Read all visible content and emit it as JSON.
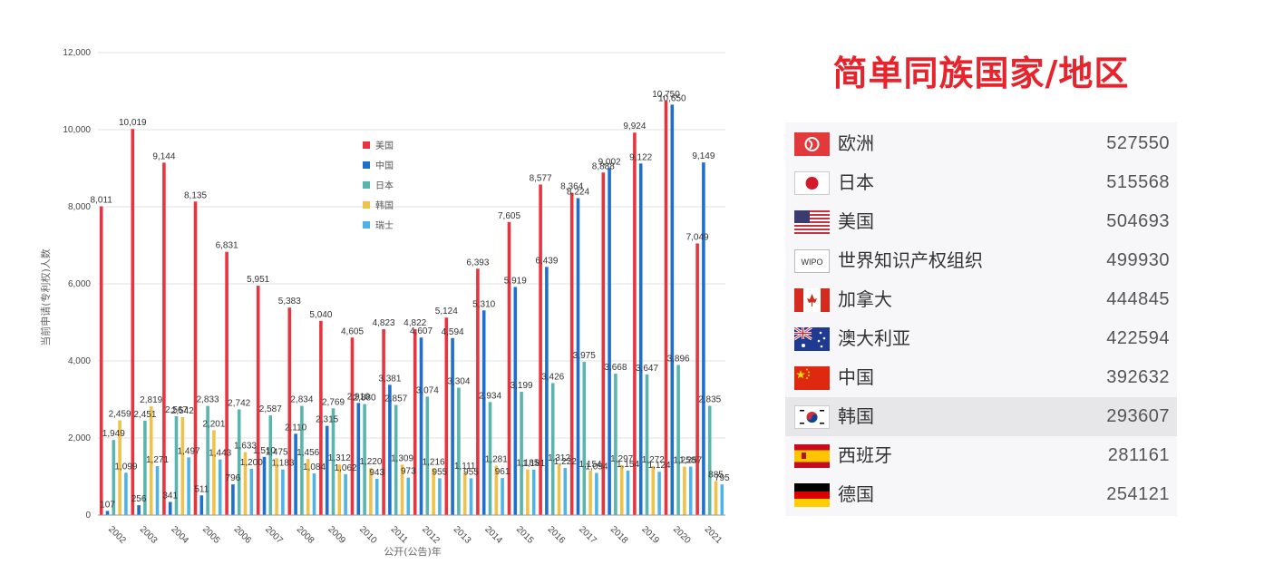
{
  "chart_data": {
    "type": "bar",
    "ylabel": "当前申请(专利权)人数",
    "xlabel": "公开(公告)年",
    "ylim": [
      0,
      12000
    ],
    "yticks": [
      "0",
      "2,000",
      "4,000",
      "6,000",
      "8,000",
      "10,000",
      "12,000"
    ],
    "grid": true,
    "legend_position": "center",
    "categories": [
      "2002",
      "2003",
      "2004",
      "2005",
      "2006",
      "2007",
      "2008",
      "2009",
      "2010",
      "2011",
      "2012",
      "2013",
      "2014",
      "2015",
      "2016",
      "2017",
      "2018",
      "2019",
      "2020",
      "2021"
    ],
    "series": [
      {
        "name": "美国",
        "color": "#e8343f",
        "values": [
          8011,
          10019,
          9144,
          8135,
          6831,
          5951,
          5383,
          5040,
          4605,
          4823,
          4822,
          5124,
          6393,
          7605,
          8577,
          8364,
          8888,
          9924,
          10750,
          7049
        ],
        "labels": [
          "8,011",
          "10,019",
          "9,144",
          "8,135",
          "6,831",
          "5,951",
          "5,383",
          "5,040",
          "4,605",
          "4,823",
          "4,822",
          "5,124",
          "6,393",
          "7,605",
          "8,577",
          "8,364",
          "8,888",
          "9,924",
          "10,750",
          "7,049"
        ]
      },
      {
        "name": "中国",
        "color": "#1f6fce",
        "values": [
          107,
          256,
          341,
          511,
          796,
          1510,
          2110,
          2315,
          2910,
          3381,
          4607,
          4594,
          5310,
          5919,
          6439,
          8224,
          9002,
          9122,
          10650,
          9149
        ],
        "labels": [
          "107",
          "256",
          "341",
          "511",
          "796",
          "1,510",
          "2,110",
          "2,315",
          "2,910",
          "3,381",
          "4,607",
          "4,594",
          "5,310",
          "5,919",
          "6,439",
          "8,224",
          "9,002",
          "9,122",
          "10,650",
          "9,149"
        ]
      },
      {
        "name": "日本",
        "color": "#5ab5ae",
        "values": [
          1949,
          2451,
          2567,
          2833,
          2742,
          2587,
          2834,
          2769,
          2880,
          2857,
          3074,
          3304,
          2934,
          3199,
          3426,
          3975,
          3668,
          3647,
          3896,
          2835
        ],
        "labels": [
          "1,949",
          "2,451",
          "2,567",
          "2,833",
          "2,742",
          "2,587",
          "2,834",
          "2,769",
          "2,880",
          "2,857",
          "3,074",
          "3,304",
          "2,934",
          "3,199",
          "3,426",
          "3,975",
          "3,668",
          "3,647",
          "3,896",
          "2,835"
        ]
      },
      {
        "name": "韩国",
        "color": "#f0c24b",
        "values": [
          2459,
          2819,
          2542,
          2201,
          1633,
          1475,
          1456,
          1312,
          1220,
          1309,
          1216,
          1111,
          1281,
          1185,
          1312,
          1154,
          1297,
          1272,
          1258,
          885
        ],
        "labels": [
          "2,459",
          "2,819",
          "2,542",
          "2,201",
          "1,633",
          "1,475",
          "1,456",
          "1,312",
          "1,220",
          "1,309",
          "1,216",
          "1,111",
          "1,281",
          "1,185",
          "1,312",
          "1,154",
          "1,297",
          "1,272",
          "1,258",
          "885"
        ]
      },
      {
        "name": "瑞士",
        "color": "#4fb3e8",
        "values": [
          1099,
          1271,
          1497,
          1443,
          1200,
          1183,
          1084,
          1062,
          943,
          973,
          955,
          955,
          961,
          1181,
          1222,
          1094,
          1154,
          1124,
          1257,
          795
        ],
        "labels": [
          "1,099",
          "1,271",
          "1,497",
          "1,443",
          "1,200",
          "1,183",
          "1,084",
          "1,062",
          "943",
          "973",
          "955",
          "955",
          "961",
          "1,181",
          "1,222",
          "1,094",
          "1,154",
          "1,124",
          "1,257",
          "795"
        ]
      }
    ]
  },
  "panel": {
    "title": "简单同族国家/地区",
    "regions": [
      {
        "name": "欧洲",
        "value": "527550",
        "flag": "eu-flag-icon"
      },
      {
        "name": "日本",
        "value": "515568",
        "flag": "japan-flag-icon"
      },
      {
        "name": "美国",
        "value": "504693",
        "flag": "usa-flag-icon"
      },
      {
        "name": "世界知识产权组织",
        "value": "499930",
        "flag": "wipo-logo-icon",
        "logo_text": "WIPO"
      },
      {
        "name": "加拿大",
        "value": "444845",
        "flag": "canada-flag-icon"
      },
      {
        "name": "澳大利亚",
        "value": "422594",
        "flag": "australia-flag-icon"
      },
      {
        "name": "中国",
        "value": "392632",
        "flag": "china-flag-icon"
      },
      {
        "name": "韩国",
        "value": "293607",
        "flag": "korea-flag-icon",
        "highlight": true
      },
      {
        "name": "西班牙",
        "value": "281161",
        "flag": "spain-flag-icon"
      },
      {
        "name": "德国",
        "value": "254121",
        "flag": "germany-flag-icon"
      }
    ]
  }
}
